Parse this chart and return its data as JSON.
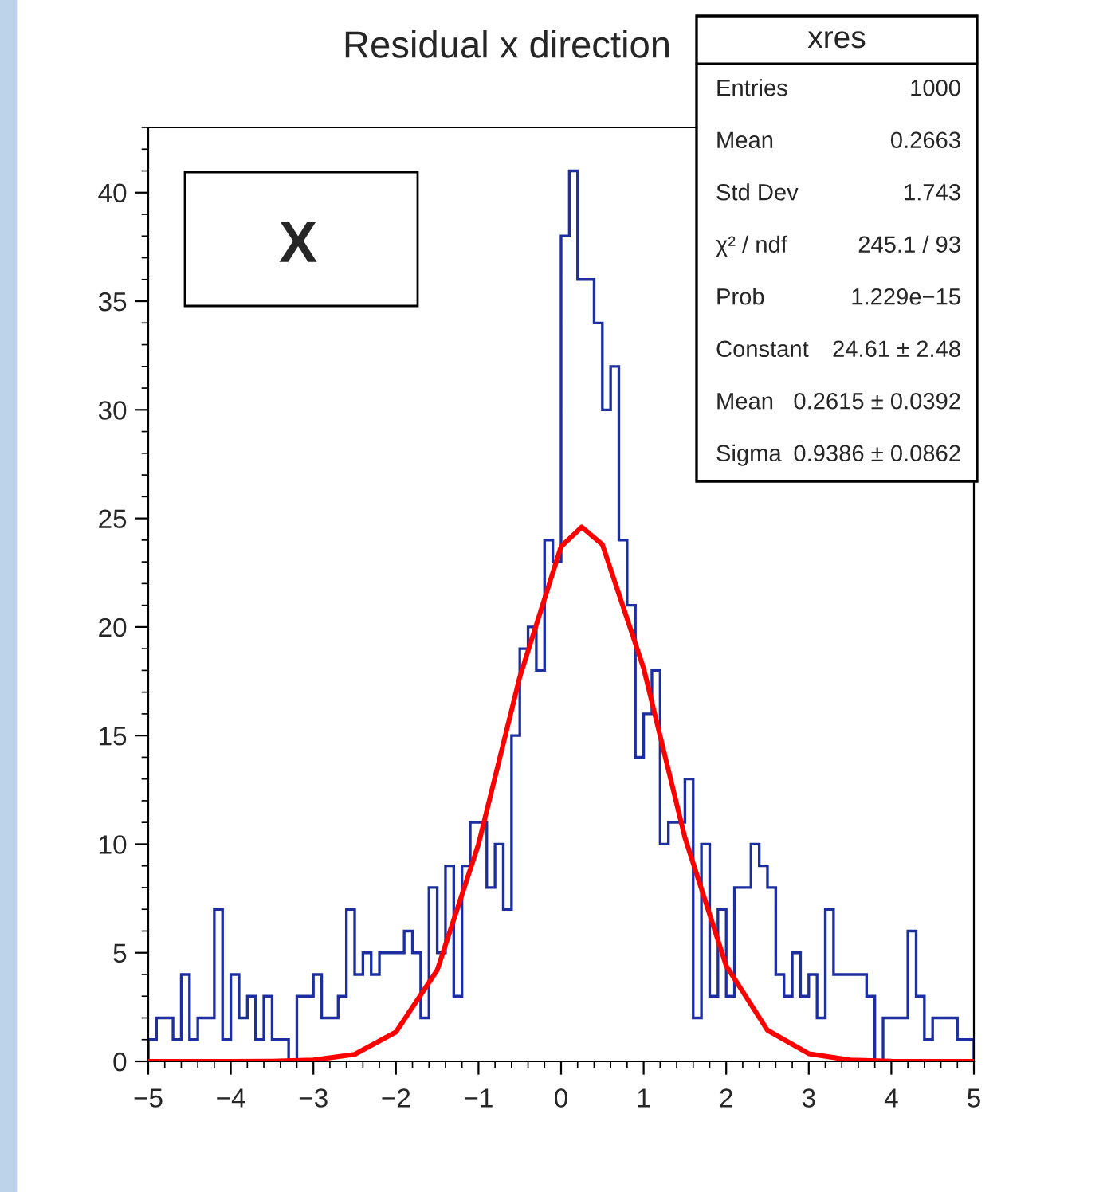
{
  "chart_data": {
    "type": "histogram",
    "title": "Residual x direction",
    "bins": [
      -5.0,
      -4.9,
      -4.8,
      -4.7,
      -4.6,
      -4.5,
      -4.4,
      -4.3,
      -4.2,
      -4.1,
      -4.0,
      -3.9,
      -3.8,
      -3.7,
      -3.6,
      -3.5,
      -3.4,
      -3.3,
      -3.2,
      -3.1,
      -3.0,
      -2.9,
      -2.8,
      -2.7,
      -2.6,
      -2.5,
      -2.4,
      -2.3,
      -2.2,
      -2.1,
      -2.0,
      -1.9,
      -1.8,
      -1.7,
      -1.6,
      -1.5,
      -1.4,
      -1.3,
      -1.2,
      -1.1,
      -1.0,
      -0.9,
      -0.8,
      -0.7,
      -0.6,
      -0.5,
      -0.4,
      -0.3,
      -0.2,
      -0.1,
      0.0,
      0.1,
      0.2,
      0.3,
      0.4,
      0.5,
      0.6,
      0.7,
      0.8,
      0.9,
      1.0,
      1.1,
      1.2,
      1.3,
      1.4,
      1.5,
      1.6,
      1.7,
      1.8,
      1.9,
      2.0,
      2.1,
      2.2,
      2.3,
      2.4,
      2.5,
      2.6,
      2.7,
      2.8,
      2.9,
      3.0,
      3.1,
      3.2,
      3.3,
      3.4,
      3.5,
      3.6,
      3.7,
      3.8,
      3.9,
      4.0,
      4.1,
      4.2,
      4.3,
      4.4,
      4.5,
      4.6,
      4.7,
      4.8,
      4.9,
      5.0
    ],
    "values": [
      1,
      2,
      2,
      1,
      4,
      1,
      2,
      2,
      7,
      1,
      4,
      2,
      3,
      1,
      3,
      1,
      1,
      0,
      3,
      3,
      4,
      2,
      2,
      3,
      7,
      4,
      5,
      4,
      5,
      5,
      5,
      6,
      5,
      2,
      8,
      5,
      9,
      3,
      9,
      11,
      11,
      8,
      10,
      7,
      15,
      19,
      20,
      18,
      24,
      23,
      38,
      41,
      36,
      36,
      34,
      30,
      32,
      24,
      21,
      14,
      16,
      18,
      10,
      11,
      11,
      13,
      2,
      10,
      3,
      7,
      3,
      8,
      8,
      10,
      9,
      8,
      4,
      3,
      5,
      3,
      4,
      2,
      7,
      4,
      4,
      4,
      4,
      3,
      0,
      2,
      2,
      2,
      6,
      3,
      1,
      2,
      2,
      2,
      1,
      1
    ],
    "color": "#1c2ea0",
    "series": [
      {
        "type": "line",
        "color": "#ff0000",
        "x": [
          -5,
          -4,
          -3.5,
          -3,
          -2.5,
          -2,
          -1.5,
          -1,
          -0.5,
          0,
          0.25,
          0.5,
          1,
          1.5,
          2,
          2.5,
          3,
          3.5,
          4,
          5
        ],
        "values": [
          0,
          0,
          0.01,
          0.06,
          0.32,
          1.35,
          4.2,
          10.0,
          17.7,
          23.7,
          24.6,
          23.8,
          18.1,
          10.3,
          4.4,
          1.43,
          0.35,
          0.06,
          0.01,
          0
        ]
      }
    ],
    "xlim": [
      -5,
      5
    ],
    "xticks": [
      {
        "value": -5,
        "label": "−5"
      },
      {
        "value": -4,
        "label": "−4"
      },
      {
        "value": -3,
        "label": "−3"
      },
      {
        "value": -2,
        "label": "−2"
      },
      {
        "value": -1,
        "label": "−1"
      },
      0,
      1,
      2,
      3,
      4,
      5
    ],
    "ylim": [
      0,
      43
    ],
    "yticks": [
      0,
      5,
      10,
      15,
      20,
      25,
      30,
      35,
      40
    ],
    "grid": false,
    "legend": false,
    "annotations": [
      "X",
      "xres",
      "Entries",
      "1000",
      "Mean",
      "0.2663",
      "Std Dev",
      "1.743",
      "χ² / ndf",
      "245.1 / 93",
      "Prob",
      "1.229e−15",
      "Constant",
      "24.61 ± 2.48",
      "Mean",
      "0.2615 ± 0.0392",
      "Sigma",
      "0.9386 ± 0.0862"
    ]
  }
}
